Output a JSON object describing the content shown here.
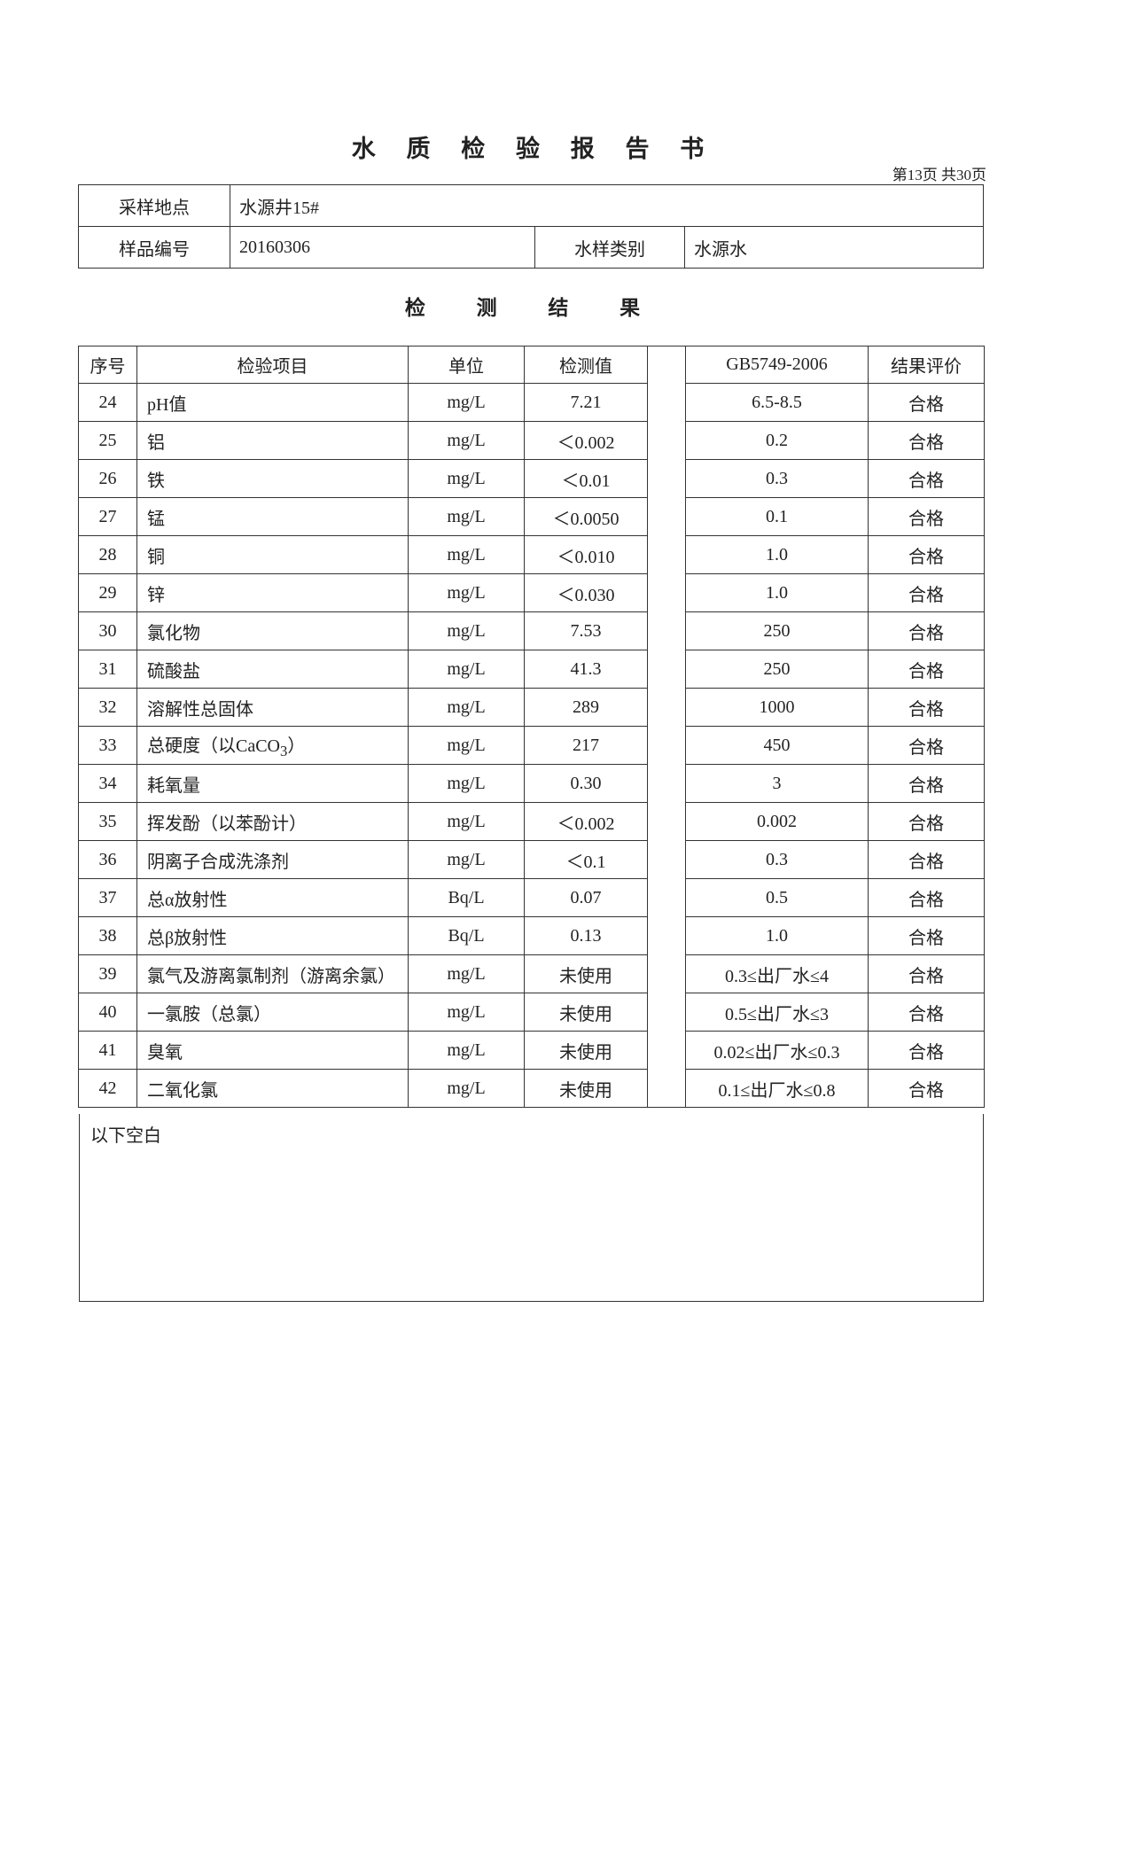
{
  "title": "水 质 检 验 报 告 书",
  "page_number": "第13页 共30页",
  "info": {
    "location_label": "采样地点",
    "location_value": "水源井15#",
    "sample_no_label": "样品编号",
    "sample_no_value": "20160306",
    "type_label": "水样类别",
    "type_value": "水源水"
  },
  "results_title": "检 测 结 果",
  "table": {
    "headers": [
      "序号",
      "检验项目",
      "单位",
      "检测值",
      "GB5749-2006",
      "结果评价"
    ],
    "rows": [
      {
        "no": "24",
        "name": "pH值",
        "unit": "mg/L",
        "value": "7.21",
        "standard": "6.5-8.5",
        "result": "合格"
      },
      {
        "no": "25",
        "name": "铝",
        "unit": "mg/L",
        "value": "＜0.002",
        "standard": "0.2",
        "result": "合格"
      },
      {
        "no": "26",
        "name": "铁",
        "unit": "mg/L",
        "value": "＜0.01",
        "standard": "0.3",
        "result": "合格"
      },
      {
        "no": "27",
        "name": "锰",
        "unit": "mg/L",
        "value": "＜0.0050",
        "standard": "0.1",
        "result": "合格"
      },
      {
        "no": "28",
        "name": "铜",
        "unit": "mg/L",
        "value": "＜0.010",
        "standard": "1.0",
        "result": "合格"
      },
      {
        "no": "29",
        "name": "锌",
        "unit": "mg/L",
        "value": "＜0.030",
        "standard": "1.0",
        "result": "合格"
      },
      {
        "no": "30",
        "name": "氯化物",
        "unit": "mg/L",
        "value": "7.53",
        "standard": "250",
        "result": "合格"
      },
      {
        "no": "31",
        "name": "硫酸盐",
        "unit": "mg/L",
        "value": "41.3",
        "standard": "250",
        "result": "合格"
      },
      {
        "no": "32",
        "name": "溶解性总固体",
        "unit": "mg/L",
        "value": "289",
        "standard": "1000",
        "result": "合格"
      },
      {
        "no": "33",
        "name": "总硬度（以CaCO",
        "name_sub": "3",
        "name_after": "）",
        "unit": "mg/L",
        "value": "217",
        "standard": "450",
        "result": "合格"
      },
      {
        "no": "34",
        "name": "耗氧量",
        "unit": "mg/L",
        "value": "0.30",
        "standard": "3",
        "result": "合格"
      },
      {
        "no": "35",
        "name": "挥发酚（以苯酚计）",
        "unit": "mg/L",
        "value": "＜0.002",
        "standard": "0.002",
        "result": "合格"
      },
      {
        "no": "36",
        "name": "阴离子合成洗涤剂",
        "unit": "mg/L",
        "value": "＜0.1",
        "standard": "0.3",
        "result": "合格"
      },
      {
        "no": "37",
        "name": "总α放射性",
        "unit": "Bq/L",
        "value": "0.07",
        "standard": "0.5",
        "result": "合格"
      },
      {
        "no": "38",
        "name": "总β放射性",
        "unit": "Bq/L",
        "value": "0.13",
        "standard": "1.0",
        "result": "合格"
      },
      {
        "no": "39",
        "name": "氯气及游离氯制剂（游离余氯）",
        "unit": "mg/L",
        "value": "未使用",
        "standard": "0.3≤出厂水≤4",
        "result": "合格"
      },
      {
        "no": "40",
        "name": "一氯胺（总氯）",
        "unit": "mg/L",
        "value": "未使用",
        "standard": "0.5≤出厂水≤3",
        "result": "合格"
      },
      {
        "no": "41",
        "name": "臭氧",
        "unit": "mg/L",
        "value": "未使用",
        "standard": "0.02≤出厂水≤0.3",
        "result": "合格"
      },
      {
        "no": "42",
        "name": "二氧化氯",
        "unit": "mg/L",
        "value": "未使用",
        "standard": "0.1≤出厂水≤0.8",
        "result": "合格"
      }
    ]
  },
  "footer_note": "以下空白"
}
